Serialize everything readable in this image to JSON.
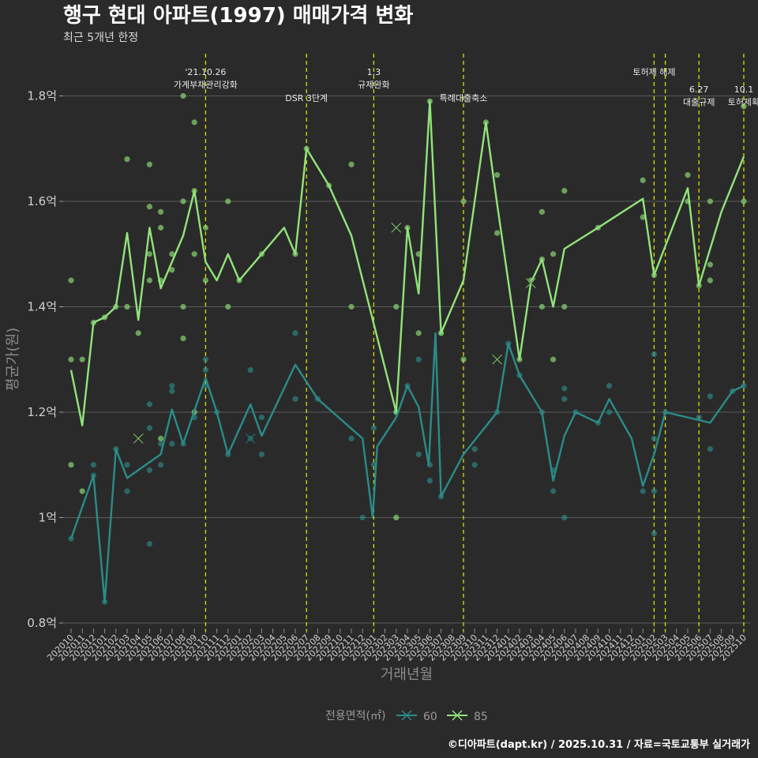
{
  "chart_data": {
    "type": "line",
    "title": "행구 현대 아파트(1997) 매매가격 변화",
    "subtitle": "최근 5개년 한정",
    "xlabel": "거래년월",
    "ylabel": "평균가(원)",
    "caption": "©디아파트(dapt.kr) / 2025.10.31 / 자료=국토교통부 실거래가",
    "legend_title": "전용면적(㎡)",
    "y_range": [
      0.8,
      1.88
    ],
    "y_ticks": [
      {
        "v": 0.8,
        "label": "0.8억"
      },
      {
        "v": 1.0,
        "label": "1억"
      },
      {
        "v": 1.2,
        "label": "1.2억"
      },
      {
        "v": 1.4,
        "label": "1.4억"
      },
      {
        "v": 1.6,
        "label": "1.6억"
      },
      {
        "v": 1.8,
        "label": "1.8억"
      }
    ],
    "x_range": [
      0,
      61
    ],
    "categories": [
      "202010",
      "202011",
      "202012",
      "202101",
      "202102",
      "202103",
      "202104",
      "202105",
      "202106",
      "202107",
      "202108",
      "202109",
      "202110",
      "202111",
      "202112",
      "202201",
      "202202",
      "202203",
      "202204",
      "202205",
      "202206",
      "202207",
      "202208",
      "202209",
      "202210",
      "202211",
      "202212",
      "202301",
      "202302",
      "202303",
      "202304",
      "202305",
      "202306",
      "202307",
      "202308",
      "202309",
      "202310",
      "202311",
      "202312",
      "202401",
      "202402",
      "202403",
      "202404",
      "202405",
      "202406",
      "202407",
      "202408",
      "202409",
      "202410",
      "202411",
      "202412",
      "202501",
      "202502",
      "202503",
      "202504",
      "202505",
      "202506",
      "202507",
      "202508",
      "202509",
      "202510"
    ],
    "events": [
      {
        "x": 12,
        "lines": [
          "'21.10.26",
          "가계부채관리강화"
        ],
        "top": true
      },
      {
        "x": 21,
        "lines": [
          "DSR 3단계"
        ],
        "top": false
      },
      {
        "x": 27,
        "lines": [
          "1.3",
          "규제완화"
        ],
        "top": true
      },
      {
        "x": 35,
        "lines": [
          "특례대출축소"
        ],
        "top": false
      },
      {
        "x": 52,
        "lines": [
          "토허제 해제"
        ],
        "top": true
      },
      {
        "x": 53,
        "lines": [],
        "top": true
      },
      {
        "x": 56,
        "lines": [
          "6.27",
          "대출규제"
        ],
        "top": false
      },
      {
        "x": 60,
        "lines": [
          "10.1",
          "토허제확"
        ],
        "top": false
      }
    ],
    "series": [
      {
        "name": "60",
        "color": "#2a8c8a",
        "line": [
          [
            0,
            0.96
          ],
          [
            2,
            1.08
          ],
          [
            3,
            0.84
          ],
          [
            4,
            1.13
          ],
          [
            5,
            1.075
          ],
          [
            6,
            1.09
          ],
          [
            8,
            1.12
          ],
          [
            9,
            1.205
          ],
          [
            10,
            1.14
          ],
          [
            12,
            1.265
          ],
          [
            13,
            1.2
          ],
          [
            14,
            1.12
          ],
          [
            16,
            1.215
          ],
          [
            17,
            1.155
          ],
          [
            20,
            1.29
          ],
          [
            22,
            1.225
          ],
          [
            26,
            1.15
          ],
          [
            26.9,
            1.0
          ],
          [
            27.3,
            1.135
          ],
          [
            29,
            1.19
          ],
          [
            30,
            1.25
          ],
          [
            31,
            1.21
          ],
          [
            31.9,
            1.1
          ],
          [
            32.5,
            1.35
          ],
          [
            33,
            1.04
          ],
          [
            35,
            1.12
          ],
          [
            38,
            1.2
          ],
          [
            39,
            1.33
          ],
          [
            40,
            1.27
          ],
          [
            42,
            1.2
          ],
          [
            43,
            1.07
          ],
          [
            44,
            1.155
          ],
          [
            45,
            1.2
          ],
          [
            47,
            1.18
          ],
          [
            48,
            1.225
          ],
          [
            50,
            1.15
          ],
          [
            51,
            1.06
          ],
          [
            52,
            1.12
          ],
          [
            53,
            1.2
          ],
          [
            57,
            1.18
          ],
          [
            59,
            1.24
          ],
          [
            60,
            1.25
          ]
        ],
        "points": [
          [
            0,
            0.96
          ],
          [
            2,
            1.08
          ],
          [
            2,
            1.1
          ],
          [
            3,
            0.84
          ],
          [
            4,
            1.13
          ],
          [
            5,
            1.1
          ],
          [
            5,
            1.05
          ],
          [
            7,
            0.95
          ],
          [
            7,
            1.09
          ],
          [
            7,
            1.17
          ],
          [
            7,
            1.215
          ],
          [
            8,
            1.1
          ],
          [
            8,
            1.14
          ],
          [
            9,
            1.24
          ],
          [
            9,
            1.25
          ],
          [
            9,
            1.14
          ],
          [
            10,
            1.14
          ],
          [
            11,
            1.19
          ],
          [
            12,
            1.3
          ],
          [
            12,
            1.28
          ],
          [
            12,
            1.25
          ],
          [
            13,
            1.2
          ],
          [
            14,
            1.12
          ],
          [
            16,
            1.28
          ],
          [
            16,
            1.15
          ],
          [
            17,
            1.19
          ],
          [
            17,
            1.12
          ],
          [
            20,
            1.35
          ],
          [
            20,
            1.225
          ],
          [
            22,
            1.225
          ],
          [
            25,
            1.15
          ],
          [
            26,
            1.0
          ],
          [
            27,
            1.17
          ],
          [
            27,
            1.1
          ],
          [
            29,
            1.2
          ],
          [
            30,
            1.25
          ],
          [
            31,
            1.3
          ],
          [
            31,
            1.12
          ],
          [
            32,
            1.07
          ],
          [
            32,
            1.1
          ],
          [
            33,
            1.35
          ],
          [
            33,
            1.04
          ],
          [
            36,
            1.1
          ],
          [
            36,
            1.13
          ],
          [
            38,
            1.2
          ],
          [
            39,
            1.33
          ],
          [
            40,
            1.27
          ],
          [
            42,
            1.2
          ],
          [
            43,
            1.05
          ],
          [
            43,
            1.09
          ],
          [
            44,
            1.245
          ],
          [
            44,
            1.225
          ],
          [
            44,
            1.0
          ],
          [
            45,
            1.2
          ],
          [
            47,
            1.18
          ],
          [
            48,
            1.25
          ],
          [
            48,
            1.2
          ],
          [
            51,
            1.05
          ],
          [
            52,
            1.31
          ],
          [
            52,
            1.15
          ],
          [
            52,
            1.05
          ],
          [
            52,
            0.97
          ],
          [
            53,
            1.2
          ],
          [
            56,
            1.19
          ],
          [
            57,
            1.23
          ],
          [
            57,
            1.13
          ],
          [
            59,
            1.24
          ],
          [
            60,
            1.25
          ]
        ],
        "crosses": [
          [
            16,
            1.15
          ]
        ]
      },
      {
        "name": "85",
        "color": "#90e47a",
        "line": [
          [
            0,
            1.28
          ],
          [
            1,
            1.175
          ],
          [
            2,
            1.37
          ],
          [
            3,
            1.38
          ],
          [
            4,
            1.4
          ],
          [
            5,
            1.54
          ],
          [
            6,
            1.375
          ],
          [
            7,
            1.55
          ],
          [
            8,
            1.435
          ],
          [
            10,
            1.535
          ],
          [
            11,
            1.62
          ],
          [
            12,
            1.485
          ],
          [
            13,
            1.45
          ],
          [
            14,
            1.5
          ],
          [
            15,
            1.45
          ],
          [
            17,
            1.5
          ],
          [
            19,
            1.55
          ],
          [
            20,
            1.5
          ],
          [
            21,
            1.7
          ],
          [
            23,
            1.63
          ],
          [
            25,
            1.535
          ],
          [
            29,
            1.2
          ],
          [
            30,
            1.55
          ],
          [
            31,
            1.425
          ],
          [
            32,
            1.79
          ],
          [
            33,
            1.35
          ],
          [
            35,
            1.45
          ],
          [
            37,
            1.75
          ],
          [
            38,
            1.595
          ],
          [
            40,
            1.3
          ],
          [
            41,
            1.445
          ],
          [
            42,
            1.49
          ],
          [
            43,
            1.4
          ],
          [
            44,
            1.51
          ],
          [
            47,
            1.55
          ],
          [
            51,
            1.605
          ],
          [
            52,
            1.46
          ],
          [
            55,
            1.625
          ],
          [
            56,
            1.44
          ],
          [
            57,
            1.51
          ],
          [
            58,
            1.58
          ],
          [
            60,
            1.685
          ]
        ],
        "points": [
          [
            0,
            1.45
          ],
          [
            0,
            1.3
          ],
          [
            0,
            1.1
          ],
          [
            1,
            1.05
          ],
          [
            1,
            1.3
          ],
          [
            2,
            1.37
          ],
          [
            3,
            1.38
          ],
          [
            4,
            1.4
          ],
          [
            5,
            1.4
          ],
          [
            5,
            1.68
          ],
          [
            6,
            1.35
          ],
          [
            7,
            1.67
          ],
          [
            7,
            1.59
          ],
          [
            7,
            1.5
          ],
          [
            7,
            1.45
          ],
          [
            8,
            1.58
          ],
          [
            8,
            1.55
          ],
          [
            8,
            1.45
          ],
          [
            8,
            1.15
          ],
          [
            9,
            1.5
          ],
          [
            9,
            1.47
          ],
          [
            10,
            1.8
          ],
          [
            10,
            1.6
          ],
          [
            10,
            1.4
          ],
          [
            10,
            1.34
          ],
          [
            11,
            1.75
          ],
          [
            11,
            1.62
          ],
          [
            11,
            1.5
          ],
          [
            11,
            1.2
          ],
          [
            12,
            1.55
          ],
          [
            12,
            1.45
          ],
          [
            14,
            1.6
          ],
          [
            14,
            1.4
          ],
          [
            15,
            1.45
          ],
          [
            17,
            1.5
          ],
          [
            20,
            1.5
          ],
          [
            21,
            1.7
          ],
          [
            23,
            1.63
          ],
          [
            25,
            1.67
          ],
          [
            25,
            1.4
          ],
          [
            29,
            1.4
          ],
          [
            29,
            1.2
          ],
          [
            29,
            1.0
          ],
          [
            30,
            1.55
          ],
          [
            31,
            1.5
          ],
          [
            31,
            1.35
          ],
          [
            32,
            1.79
          ],
          [
            33,
            1.35
          ],
          [
            35,
            1.6
          ],
          [
            35,
            1.3
          ],
          [
            37,
            1.75
          ],
          [
            38,
            1.65
          ],
          [
            38,
            1.54
          ],
          [
            40,
            1.3
          ],
          [
            41,
            1.45
          ],
          [
            42,
            1.58
          ],
          [
            42,
            1.49
          ],
          [
            42,
            1.4
          ],
          [
            43,
            1.3
          ],
          [
            43,
            1.5
          ],
          [
            44,
            1.62
          ],
          [
            44,
            1.4
          ],
          [
            47,
            1.55
          ],
          [
            51,
            1.64
          ],
          [
            51,
            1.57
          ],
          [
            52,
            1.46
          ],
          [
            55,
            1.65
          ],
          [
            55,
            1.6
          ],
          [
            56,
            1.44
          ],
          [
            57,
            1.6
          ],
          [
            57,
            1.48
          ],
          [
            57,
            1.45
          ],
          [
            60,
            1.78
          ],
          [
            60,
            1.6
          ]
        ],
        "crosses": [
          [
            6,
            1.15
          ],
          [
            29,
            1.55
          ],
          [
            38,
            1.3
          ],
          [
            41,
            1.445
          ]
        ]
      }
    ]
  }
}
